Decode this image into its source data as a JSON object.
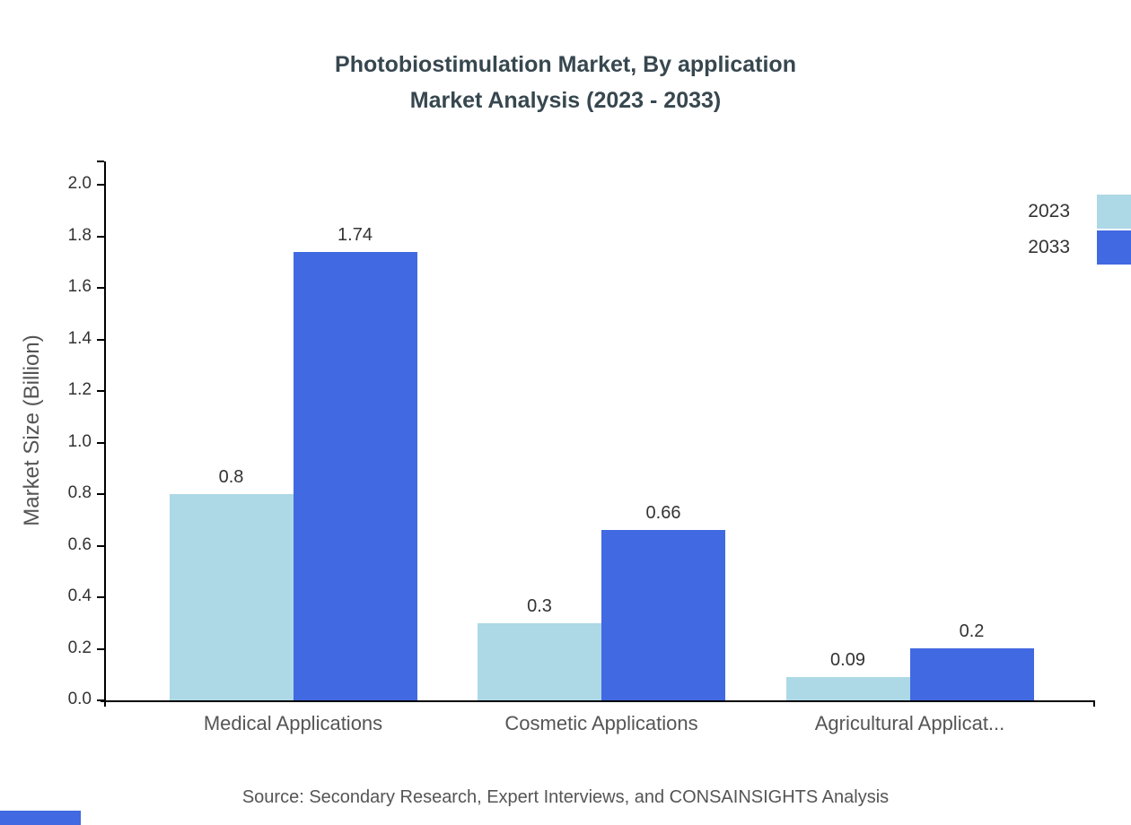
{
  "title": {
    "line1": "Photobiostimulation Market, By application",
    "line2": "Market Analysis (2023 - 2033)"
  },
  "source": "Source: Secondary Research, Expert Interviews, and CONSAINSIGHTS Analysis",
  "chart_data": {
    "type": "bar",
    "title": "Photobiostimulation Market, By application Market Analysis (2023 - 2033)",
    "categories": [
      "Medical Applications",
      "Cosmetic Applications",
      "Agricultural Applicat..."
    ],
    "series": [
      {
        "name": "2023",
        "color": "#ADD8E6",
        "values": [
          0.8,
          0.3,
          0.09
        ]
      },
      {
        "name": "2033",
        "color": "#4169E1",
        "values": [
          1.74,
          0.66,
          0.2
        ]
      }
    ],
    "xlabel": "",
    "ylabel": "Market Size (Billion)",
    "ylim": [
      0,
      2.0
    ],
    "ytick_step": 0.2,
    "grid": false,
    "legend_position": "top-right"
  },
  "colors": {
    "series_2023": "#ADD8E6",
    "series_2033": "#4169E1",
    "title_text": "#37474F",
    "axis": "#000000",
    "tick_label": "#333333",
    "category_label": "#555555",
    "source_text": "#555555",
    "corner_logo": "#4169E1"
  }
}
